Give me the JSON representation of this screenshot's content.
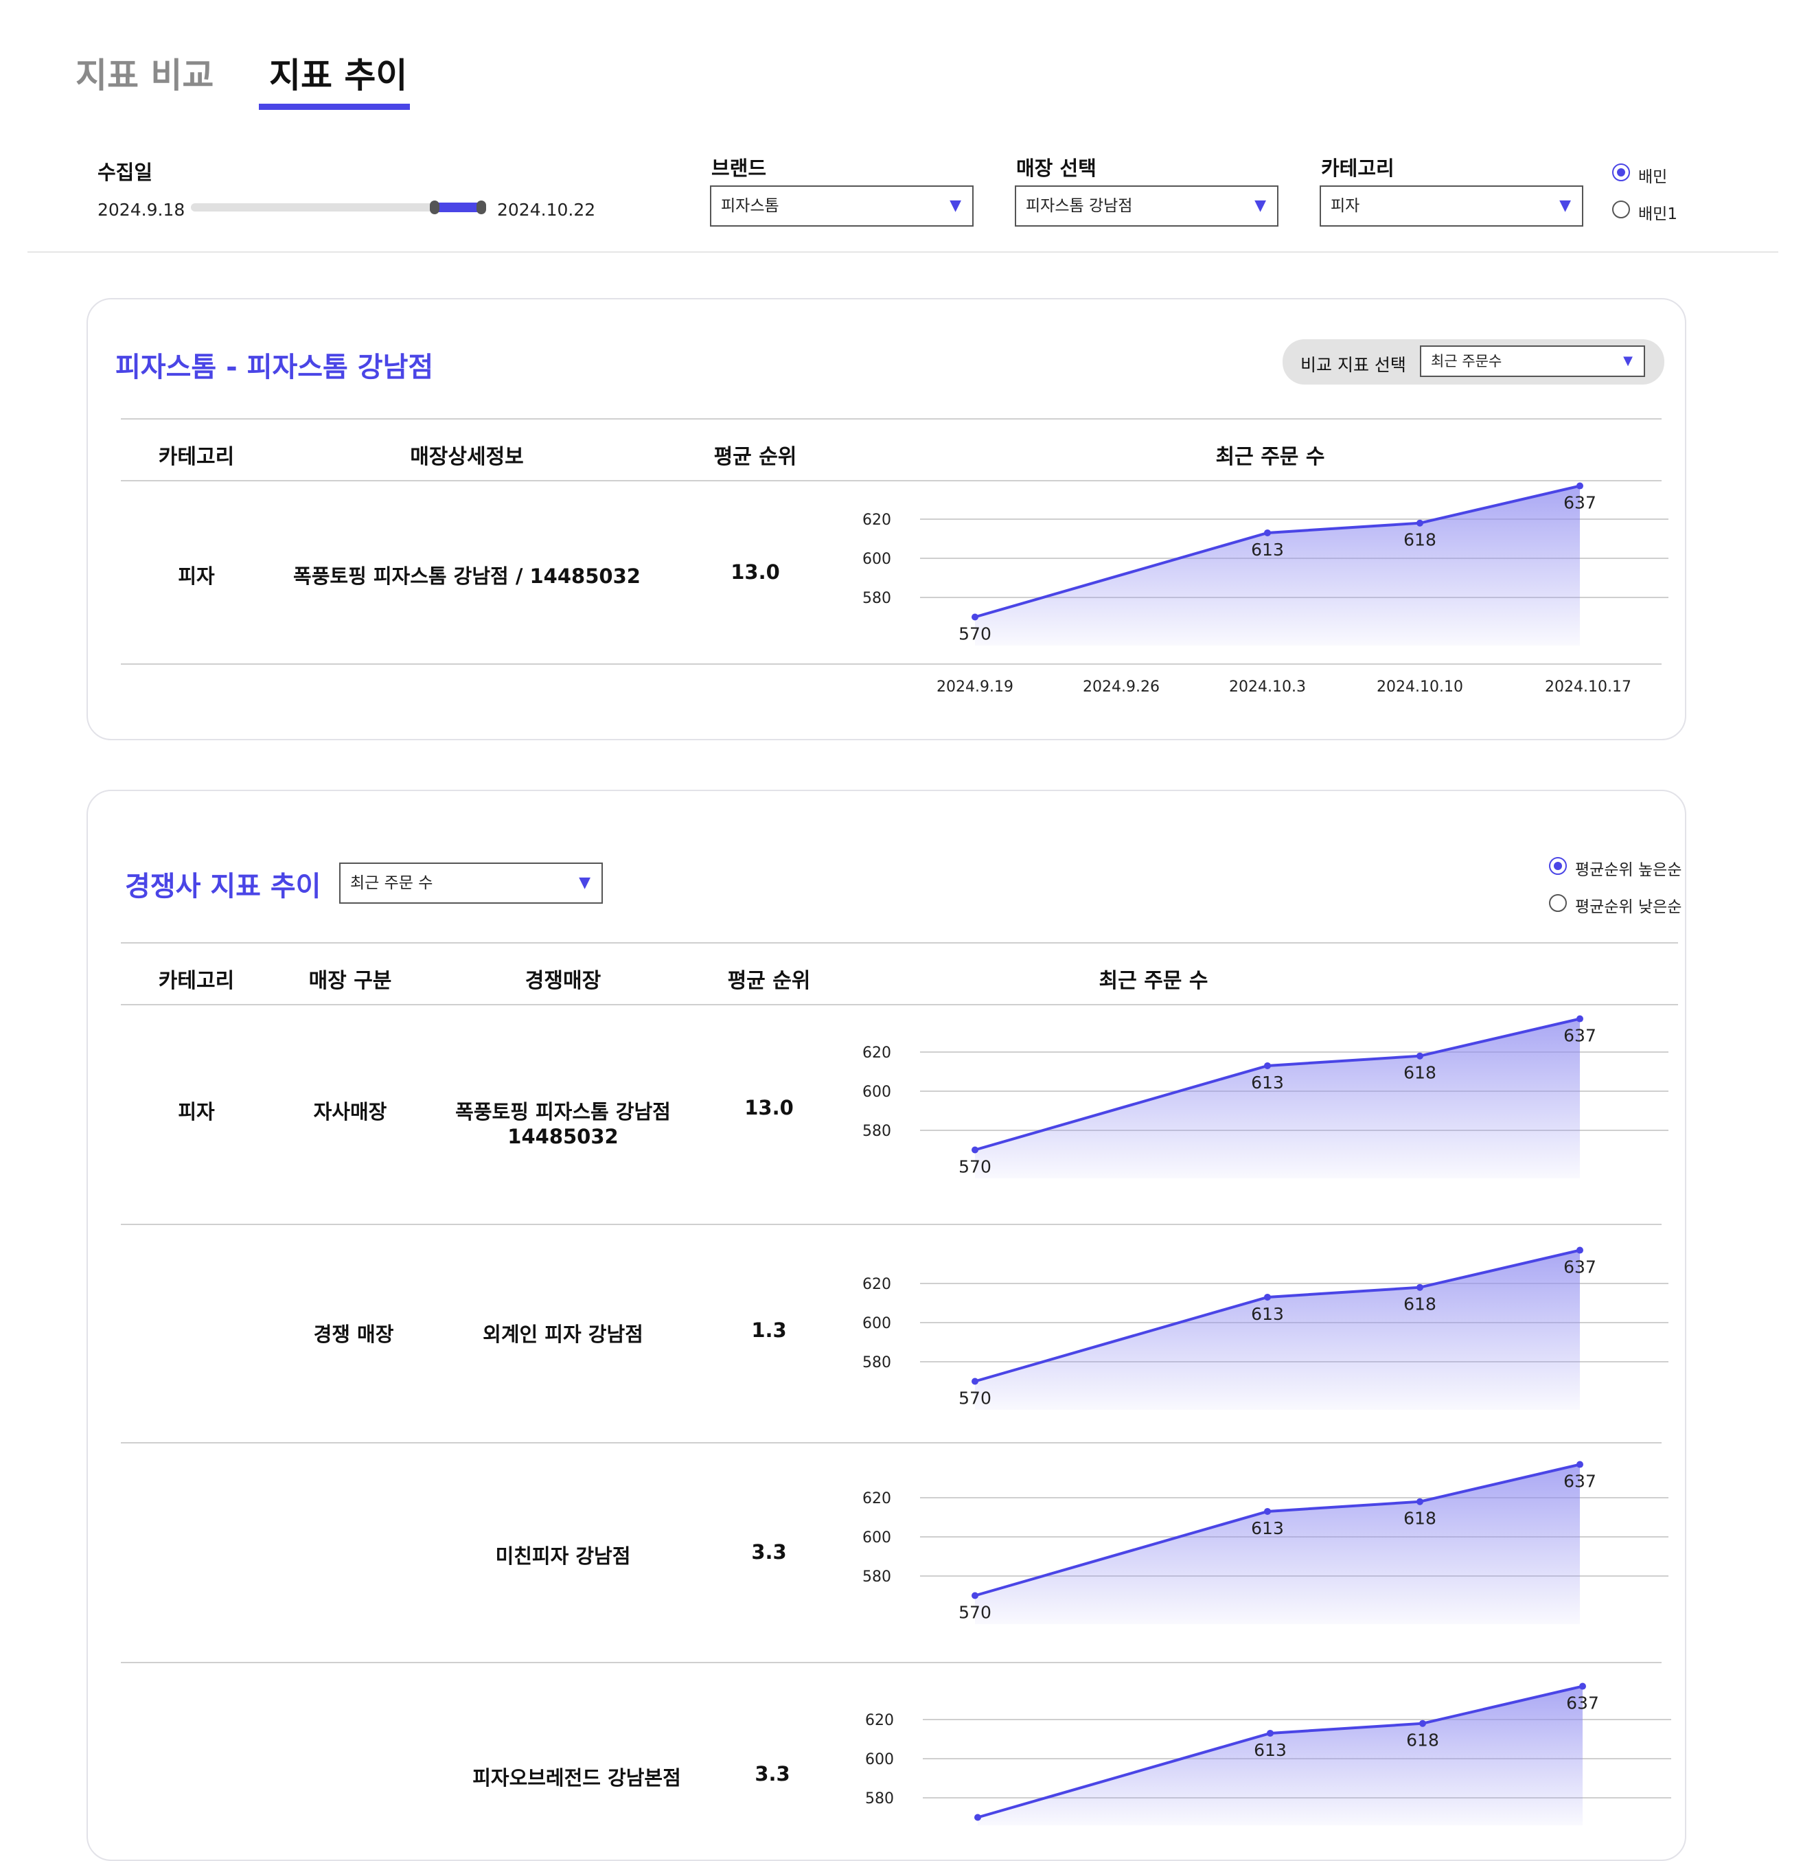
{
  "tabs": [
    {
      "label": "지표 비교",
      "active": false
    },
    {
      "label": "지표 추이",
      "active": true
    }
  ],
  "filters": {
    "date": {
      "label": "수집일",
      "start": "2024.9.18",
      "end": "2024.10.22",
      "range_start_pct": 85,
      "range_end_pct": 100
    },
    "brand": {
      "label": "브랜드",
      "value": "피자스톰"
    },
    "store": {
      "label": "매장 선택",
      "value": "피자스톰 강남점"
    },
    "category": {
      "label": "카테고리",
      "value": "피자"
    },
    "platform": {
      "options": [
        "배민",
        "배민1"
      ],
      "selected": "배민"
    }
  },
  "store_card": {
    "title": "피자스톰 - 피자스톰 강남점",
    "compare_label": "비교 지표 선택",
    "compare_value": "최근 주문수",
    "headers": [
      "카테고리",
      "매장상세정보",
      "평균 순위",
      "최근 주문 수"
    ],
    "row": {
      "category": "피자",
      "detail": "폭풍토핑 피자스톰 강남점 / 14485032",
      "avg_rank": "13.0"
    }
  },
  "competitor_card": {
    "title": "경쟁사 지표 추이",
    "metric_select": "최근 주문 수",
    "sort": {
      "options": [
        "평균순위 높은순",
        "평균순위 낮은순"
      ],
      "selected": "평균순위 높은순"
    },
    "headers": [
      "카테고리",
      "매장 구분",
      "경쟁매장",
      "평균 순위",
      "최근 주문 수"
    ],
    "rows": [
      {
        "category": "피자",
        "type": "자사매장",
        "store_line1": "폭풍토핑 피자스톰 강남점",
        "store_line2": "14485032",
        "avg_rank": "13.0"
      },
      {
        "category": "",
        "type": "경쟁 매장",
        "store_line1": "외계인 피자 강남점",
        "store_line2": "",
        "avg_rank": "1.3"
      },
      {
        "category": "",
        "type": "",
        "store_line1": "미친피자 강남점",
        "store_line2": "",
        "avg_rank": "3.3"
      },
      {
        "category": "",
        "type": "",
        "store_line1": "피자오브레전드 강남본점",
        "store_line2": "",
        "avg_rank": "3.3"
      }
    ]
  },
  "chart_data": {
    "type": "area",
    "title": "최근 주문 수",
    "x_labels": [
      "2024.9.19",
      "2024.9.26",
      "2024.10.3",
      "2024.10.10",
      "2024.10.17"
    ],
    "y_ticks": [
      580,
      600,
      620
    ],
    "points": [
      {
        "x": "2024.9.19",
        "value": 570
      },
      {
        "x": "2024.10.3",
        "value": 613
      },
      {
        "x": "2024.10.10",
        "value": 618
      },
      {
        "x": "2024.10.17",
        "value": 637
      }
    ],
    "x_index": [
      0,
      2,
      3,
      4
    ],
    "line_color": "#4a45e6",
    "fill_color": "#8e8bf0",
    "note": "same series shown in every chart"
  },
  "colors": {
    "accent": "#4a45e6",
    "card_border": "#e2e2e8",
    "text": "#111111"
  }
}
